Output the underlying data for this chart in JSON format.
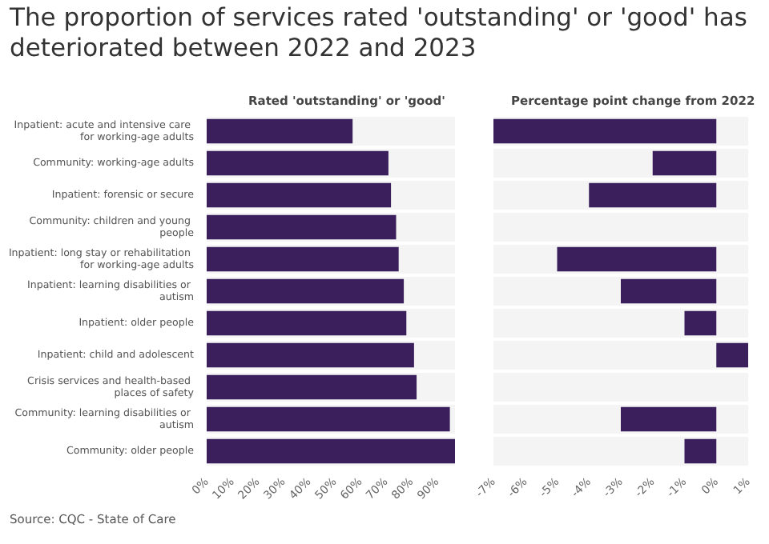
{
  "chart_data": [
    {
      "type": "bar",
      "orientation": "horizontal",
      "title": "The proportion of services rated 'outstanding' or 'good' has deteriorated between 2022 and 2023",
      "subtitle": "Rated 'outstanding' or 'good'",
      "annotations": [
        "Source: CQC - State of Care"
      ],
      "categories": [
        "Inpatient: acute and intensive care for working-age adults",
        "Community: working-age adults",
        "Inpatient: forensic or secure",
        "Community: children and young people",
        "Inpatient: long stay or rehabilitation for working-age adults",
        "Inpatient: learning disabilities or autism",
        "Inpatient: older people",
        "Inpatient: child and adolescent",
        "Crisis services and health-based places of safety",
        "Community: learning disabilities or autism",
        "Community: older people"
      ],
      "values": [
        57,
        71,
        72,
        74,
        75,
        77,
        78,
        81,
        82,
        95,
        97
      ],
      "color": "#3a1f5c",
      "xlim": [
        0,
        97
      ],
      "xticks": [
        {
          "value": 0,
          "label": "0%"
        },
        {
          "value": 10,
          "label": "10%"
        },
        {
          "value": 20,
          "label": "20%"
        },
        {
          "value": 30,
          "label": "30%"
        },
        {
          "value": 40,
          "label": "40%"
        },
        {
          "value": 50,
          "label": "50%"
        },
        {
          "value": 60,
          "label": "60%"
        },
        {
          "value": 70,
          "label": "70%"
        },
        {
          "value": 80,
          "label": "80%"
        },
        {
          "value": 90,
          "label": "90%"
        }
      ],
      "grid": false
    },
    {
      "type": "bar",
      "orientation": "horizontal",
      "title": "Percentage point change from 2022",
      "tick_labels": "x",
      "categories": [
        null,
        null,
        null,
        null,
        null,
        null,
        null,
        null,
        null,
        null,
        null
      ],
      "values": [
        -7,
        -2,
        -4,
        null,
        -5,
        -3,
        -1,
        1,
        null,
        -3,
        -1
      ],
      "color": "#3a1f5c",
      "xlim": [
        -7,
        1
      ],
      "xticks": [
        {
          "value": -7,
          "label": "-7%"
        },
        {
          "value": -6,
          "label": "-6%"
        },
        {
          "value": -5,
          "label": "-5%"
        },
        {
          "value": -4,
          "label": "-4%"
        },
        {
          "value": -3,
          "label": "-3%"
        },
        {
          "value": -2,
          "label": "-2%"
        },
        {
          "value": -1,
          "label": "-1%"
        },
        {
          "value": 0,
          "label": "0%"
        },
        {
          "value": 1,
          "label": "1%"
        }
      ],
      "grid": false
    }
  ]
}
